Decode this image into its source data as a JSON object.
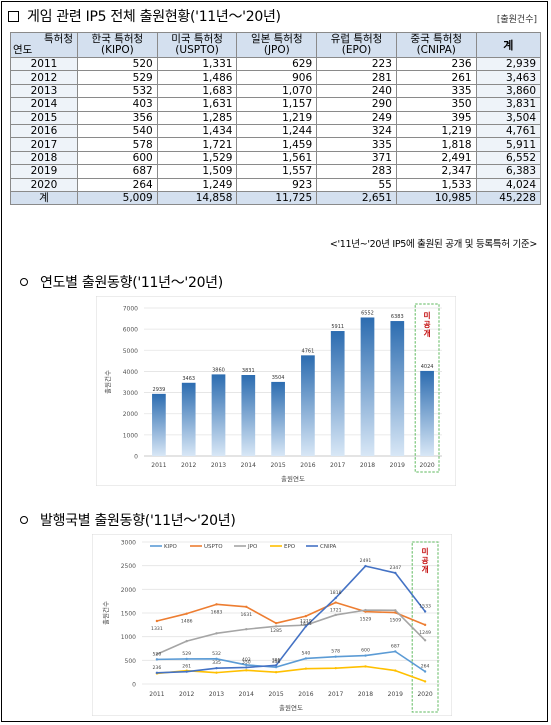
{
  "header": {
    "title": "게임 관련 IP5 전체 출원현황('11년～'20년)",
    "unit": "[출원건수]"
  },
  "table": {
    "corner_top": "특허청",
    "corner_bottom": "연도",
    "columns": [
      {
        "line1": "한국 특허청",
        "line2": "(KIPO)"
      },
      {
        "line1": "미국 특허청",
        "line2": "(USPTO)"
      },
      {
        "line1": "일본 특허청",
        "line2": "(JPO)"
      },
      {
        "line1": "유럽 특허청",
        "line2": "(EPO)"
      },
      {
        "line1": "중국 특허청",
        "line2": "(CNIPA)"
      }
    ],
    "total_header": "계",
    "rows": [
      {
        "year": "2011",
        "values": [
          "520",
          "1,331",
          "629",
          "223",
          "236"
        ],
        "total": "2,939"
      },
      {
        "year": "2012",
        "values": [
          "529",
          "1,486",
          "906",
          "281",
          "261"
        ],
        "total": "3,463"
      },
      {
        "year": "2013",
        "values": [
          "532",
          "1,683",
          "1,070",
          "240",
          "335"
        ],
        "total": "3,860"
      },
      {
        "year": "2014",
        "values": [
          "403",
          "1,631",
          "1,157",
          "290",
          "350"
        ],
        "total": "3,831"
      },
      {
        "year": "2015",
        "values": [
          "356",
          "1,285",
          "1,219",
          "249",
          "395"
        ],
        "total": "3,504"
      },
      {
        "year": "2016",
        "values": [
          "540",
          "1,434",
          "1,244",
          "324",
          "1,219"
        ],
        "total": "4,761"
      },
      {
        "year": "2017",
        "values": [
          "578",
          "1,721",
          "1,459",
          "335",
          "1,818"
        ],
        "total": "5,911"
      },
      {
        "year": "2018",
        "values": [
          "600",
          "1,529",
          "1,561",
          "371",
          "2,491"
        ],
        "total": "6,552"
      },
      {
        "year": "2019",
        "values": [
          "687",
          "1,509",
          "1,557",
          "283",
          "2,347"
        ],
        "total": "6,383"
      },
      {
        "year": "2020",
        "values": [
          "264",
          "1,249",
          "923",
          "55",
          "1,533"
        ],
        "total": "4,024"
      }
    ],
    "sum_row": {
      "year": "계",
      "values": [
        "5,009",
        "14,858",
        "11,725",
        "2,651",
        "10,985"
      ],
      "total": "45,228"
    }
  },
  "note": "<'11년~'20년 IP5에 출원된 공개 및 등록특허 기준>",
  "section1": {
    "title": "연도별 출원동향('11년～'20년)"
  },
  "section2": {
    "title": "발행국별 출원동향('11년～'20년)"
  },
  "unpublished_label": "미공개",
  "chart_data": [
    {
      "type": "bar",
      "categories": [
        "2011",
        "2012",
        "2013",
        "2014",
        "2015",
        "2016",
        "2017",
        "2018",
        "2019",
        "2020"
      ],
      "values": [
        2939,
        3463,
        3860,
        3831,
        3504,
        4761,
        5911,
        6552,
        6383,
        4024
      ],
      "xlabel": "출원연도",
      "ylabel": "출원건수",
      "ylim": [
        0,
        7000
      ],
      "yticks": [
        0,
        1000,
        2000,
        3000,
        4000,
        5000,
        6000,
        7000
      ],
      "grid": true,
      "color": "#3b7fc4",
      "highlight_category": "2020"
    },
    {
      "type": "line",
      "categories": [
        "2011",
        "2012",
        "2013",
        "2014",
        "2015",
        "2016",
        "2017",
        "2018",
        "2019",
        "2020"
      ],
      "series": [
        {
          "name": "KIPO",
          "values": [
            520,
            529,
            532,
            403,
            356,
            540,
            578,
            600,
            687,
            264
          ],
          "color": "#5b9bd5"
        },
        {
          "name": "USPTO",
          "values": [
            1331,
            1486,
            1683,
            1631,
            1285,
            1434,
            1721,
            1529,
            1509,
            1249
          ],
          "color": "#ed7d31"
        },
        {
          "name": "JPO",
          "values": [
            629,
            906,
            1070,
            1157,
            1219,
            1244,
            1459,
            1561,
            1557,
            923
          ],
          "color": "#a5a5a5"
        },
        {
          "name": "EPO",
          "values": [
            223,
            281,
            240,
            290,
            249,
            324,
            335,
            371,
            283,
            55
          ],
          "color": "#ffc000"
        },
        {
          "name": "CNIPA",
          "values": [
            236,
            261,
            335,
            350,
            395,
            1219,
            1818,
            2491,
            2347,
            1533
          ],
          "color": "#4472c4"
        }
      ],
      "xlabel": "출원연도",
      "ylabel": "출원건수",
      "ylim": [
        0,
        3000
      ],
      "yticks": [
        0,
        500,
        1000,
        1500,
        2000,
        2500,
        3000
      ],
      "legend": "top",
      "grid": true,
      "highlight_category": "2020"
    }
  ]
}
